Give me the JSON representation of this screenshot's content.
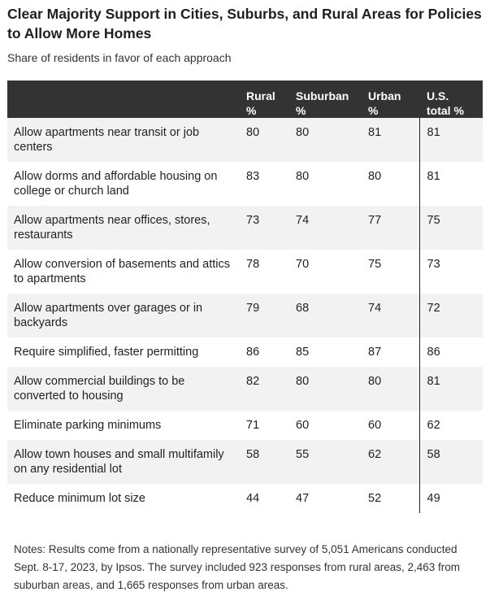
{
  "title": "Clear Majority Support in Cities, Suburbs, and Rural Areas for Policies to Allow More Homes",
  "subtitle": "Share of residents in favor of each approach",
  "notes": "Notes: Results come from a nationally representative survey of 5,051 Americans conducted Sept. 8-17, 2023, by Ipsos. The survey included 923 responses from rural areas, 2,463 from suburban areas, and 1,665 responses from urban areas.",
  "colors": {
    "header_bg": "#333333",
    "row_shade": "#f2f2f2"
  },
  "chart_data": {
    "type": "table",
    "title": "Clear Majority Support in Cities, Suburbs, and Rural Areas for Policies to Allow More Homes",
    "subtitle": "Share of residents in favor of each approach",
    "columns": [
      {
        "line1": "Rural",
        "line2": "%"
      },
      {
        "line1": "Suburban",
        "line2": "%"
      },
      {
        "line1": "Urban",
        "line2": "%"
      },
      {
        "line1": "U.S.",
        "line2": "total %"
      }
    ],
    "rows": [
      {
        "label": "Allow apartments near transit or job centers",
        "values": [
          80,
          80,
          81,
          81
        ]
      },
      {
        "label": "Allow dorms and affordable housing on college or church land",
        "values": [
          83,
          80,
          80,
          81
        ]
      },
      {
        "label": "Allow apartments near offices, stores, restaurants",
        "values": [
          73,
          74,
          77,
          75
        ]
      },
      {
        "label": "Allow conversion of basements and attics to apartments",
        "values": [
          78,
          70,
          75,
          73
        ]
      },
      {
        "label": "Allow apartments over garages or in backyards",
        "values": [
          79,
          68,
          74,
          72
        ]
      },
      {
        "label": "Require simplified, faster permitting",
        "values": [
          86,
          85,
          87,
          86
        ]
      },
      {
        "label": "Allow commercial buildings to be converted to housing",
        "values": [
          82,
          80,
          80,
          81
        ]
      },
      {
        "label": "Eliminate parking minimums",
        "values": [
          71,
          60,
          60,
          62
        ]
      },
      {
        "label": "Allow town houses and small multifamily on any residential lot",
        "values": [
          58,
          55,
          62,
          58
        ]
      },
      {
        "label": "Reduce minimum lot size",
        "values": [
          44,
          47,
          52,
          49
        ]
      }
    ]
  }
}
